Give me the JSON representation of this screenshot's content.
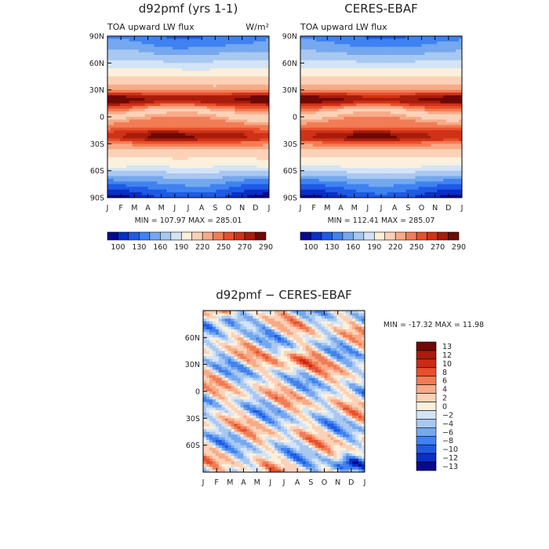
{
  "chart_data": [
    {
      "type": "heatmap",
      "title": "d92pmf (yrs 1-1)",
      "subtitle": "TOA upward LW flux",
      "units": "W/m²",
      "x_ticks": [
        "J",
        "F",
        "M",
        "A",
        "M",
        "J",
        "J",
        "A",
        "S",
        "O",
        "N",
        "D",
        "J"
      ],
      "y_ticks": [
        "90N",
        "60N",
        "30N",
        "0",
        "30S",
        "60S",
        "90S"
      ],
      "ylim": [
        -90,
        90
      ],
      "stats": "MIN = 107.97  MAX = 285.01",
      "min": 107.97,
      "max": 285.01,
      "colorbar_labels": [
        "100",
        "130",
        "160",
        "190",
        "220",
        "250",
        "270",
        "290"
      ],
      "colorbar_levels": [
        100,
        115,
        130,
        145,
        160,
        175,
        190,
        205,
        220,
        235,
        250,
        260,
        270,
        280,
        290
      ]
    },
    {
      "type": "heatmap",
      "title": "CERES-EBAF",
      "subtitle": "TOA upward LW flux",
      "x_ticks": [
        "J",
        "F",
        "M",
        "A",
        "M",
        "J",
        "J",
        "A",
        "S",
        "O",
        "N",
        "D",
        "J"
      ],
      "y_ticks": [
        "90N",
        "60N",
        "30N",
        "0",
        "30S",
        "60S",
        "90S"
      ],
      "ylim": [
        -90,
        90
      ],
      "stats": "MIN = 112.41  MAX = 285.07",
      "min": 112.41,
      "max": 285.07,
      "colorbar_labels": [
        "100",
        "130",
        "160",
        "190",
        "220",
        "250",
        "270",
        "290"
      ]
    },
    {
      "type": "heatmap",
      "title": "d92pmf − CERES-EBAF",
      "x_ticks": [
        "J",
        "F",
        "M",
        "A",
        "M",
        "J",
        "J",
        "A",
        "S",
        "O",
        "N",
        "D",
        "J"
      ],
      "y_ticks": [
        "60N",
        "30N",
        "0",
        "30S",
        "60S"
      ],
      "ylim": [
        -90,
        90
      ],
      "stats": "MIN = -17.32  MAX =  11.98",
      "min": -17.32,
      "max": 11.98,
      "colorbar_labels": [
        "13",
        "12",
        "10",
        "8",
        "6",
        "4",
        "2",
        "0",
        "−2",
        "−4",
        "−6",
        "−8",
        "−10",
        "−12",
        "−13"
      ]
    }
  ],
  "colors": {
    "abs_palette": [
      "#08088c",
      "#0a2fc7",
      "#1f5ae6",
      "#3f82f0",
      "#75a8ee",
      "#a9c8f1",
      "#d4e4f7",
      "#fbf0dc",
      "#fbd2b8",
      "#f7ab88",
      "#f27c55",
      "#e8502b",
      "#d03218",
      "#a81c0c",
      "#6e0905"
    ],
    "diff_palette": [
      "#6e0905",
      "#a81c0c",
      "#cc2a14",
      "#e8502b",
      "#f27c55",
      "#f7ab88",
      "#fbd2b8",
      "#fbf0dc",
      "#d4e4f7",
      "#a9c8f1",
      "#75a8ee",
      "#3f82f0",
      "#1f5ae6",
      "#0a2fc7",
      "#08088c"
    ]
  }
}
